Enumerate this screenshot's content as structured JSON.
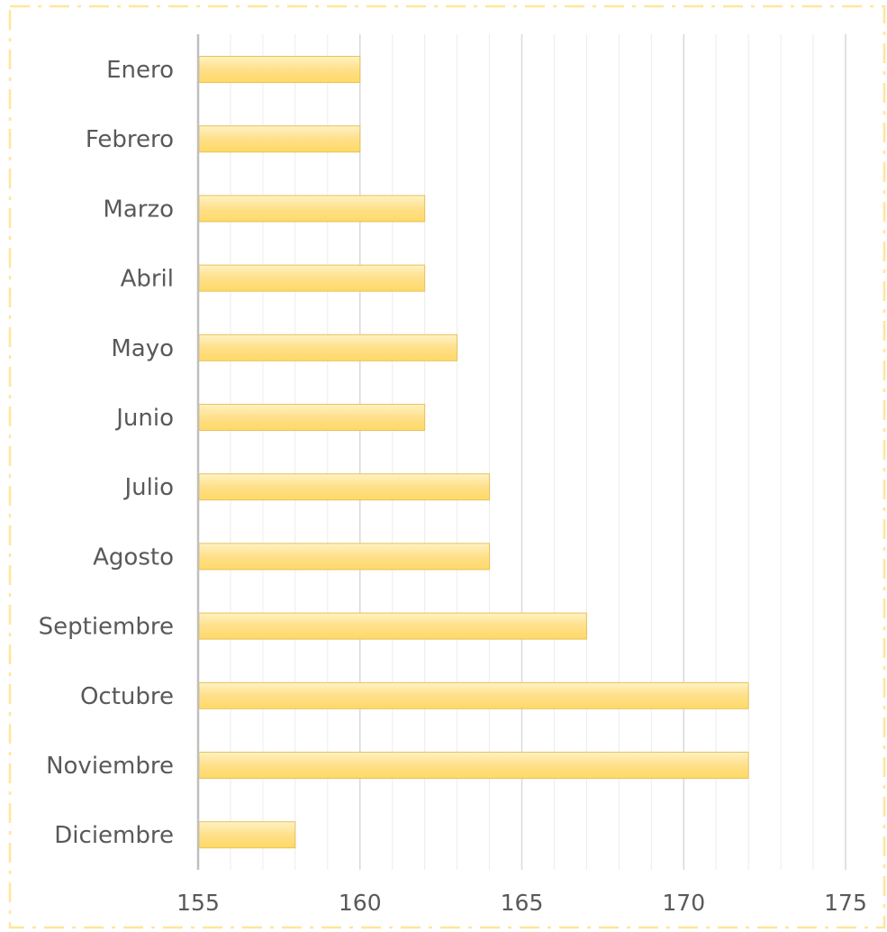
{
  "chart_data": {
    "type": "bar",
    "orientation": "horizontal",
    "title": "",
    "xlabel": "",
    "ylabel": "",
    "categories": [
      "Enero",
      "Febrero",
      "Marzo",
      "Abril",
      "Mayo",
      "Junio",
      "Julio",
      "Agosto",
      "Septiembre",
      "Octubre",
      "Noviembre",
      "Diciembre"
    ],
    "values": [
      160,
      160,
      162,
      162,
      163,
      162,
      164,
      164,
      167,
      172,
      172,
      158
    ],
    "xlim": [
      155,
      175
    ],
    "x_ticks": [
      "155",
      "160",
      "165",
      "170",
      "175"
    ],
    "grid": true,
    "legend": "none",
    "colors": {
      "bar_fill_top": "#fff2c4",
      "bar_fill_mid": "#ffe08a",
      "bar_fill_bottom": "#ffd966",
      "bar_stroke": "#e6c25a",
      "frame_border": "#ffe699",
      "gridline": "#d9d9d9",
      "axis_line": "#bfbfbf",
      "label_text": "#595959"
    }
  }
}
